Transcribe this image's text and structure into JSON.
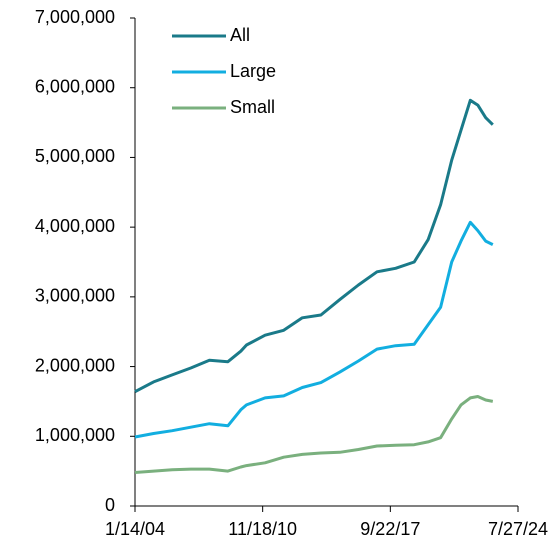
{
  "chart_data": {
    "type": "line",
    "x": [
      "1/14/04",
      "1/12/05",
      "1/11/06",
      "1/10/07",
      "1/9/08",
      "1/7/09",
      "9/16/09",
      "1/6/10",
      "1/5/11",
      "1/4/12",
      "1/2/13",
      "1/1/14",
      "1/7/15",
      "1/6/16",
      "1/4/17",
      "1/3/18",
      "1/2/19",
      "10/2/19",
      "6/3/20",
      "1/6/21",
      "7/7/21",
      "1/5/22",
      "6/1/22",
      "11/2/22",
      "3/22/23"
    ],
    "series": [
      {
        "name": "All",
        "color": "#1a7a89",
        "values": [
          1640000,
          1780000,
          1880000,
          1980000,
          2090000,
          2070000,
          2220000,
          2310000,
          2450000,
          2520000,
          2700000,
          2740000,
          2960000,
          3170000,
          3360000,
          3410000,
          3500000,
          3820000,
          4320000,
          4960000,
          5390000,
          5820000,
          5750000,
          5570000,
          5470000
        ]
      },
      {
        "name": "Large",
        "color": "#12aee0",
        "values": [
          990000,
          1040000,
          1080000,
          1130000,
          1180000,
          1150000,
          1380000,
          1450000,
          1550000,
          1580000,
          1700000,
          1770000,
          1920000,
          2080000,
          2250000,
          2300000,
          2320000,
          2600000,
          2850000,
          3500000,
          3800000,
          4070000,
          3950000,
          3800000,
          3750000
        ]
      },
      {
        "name": "Small",
        "color": "#7ab07e",
        "values": [
          480000,
          500000,
          520000,
          530000,
          530000,
          500000,
          560000,
          580000,
          620000,
          700000,
          740000,
          760000,
          770000,
          810000,
          860000,
          870000,
          880000,
          920000,
          980000,
          1250000,
          1450000,
          1550000,
          1570000,
          1520000,
          1500000
        ]
      }
    ],
    "ylim": [
      0,
      7000000
    ],
    "yticks": [
      0,
      {
        "value": 1000000,
        "label": "1,000,000"
      },
      {
        "value": 2000000,
        "label": "2,000,000"
      },
      {
        "value": 3000000,
        "label": "3,000,000"
      },
      {
        "value": 4000000,
        "label": "4,000,000"
      },
      {
        "value": 5000000,
        "label": "5,000,000"
      },
      {
        "value": 6000000,
        "label": "6,000,000"
      },
      {
        "value": 7000000,
        "label": "7,000,000"
      }
    ],
    "xlim": [
      "1/14/04",
      "7/27/24"
    ],
    "xticks": [
      "1/14/04",
      "11/18/10",
      "9/22/17",
      "7/27/24"
    ],
    "legend": "top-left",
    "grid": false
  }
}
